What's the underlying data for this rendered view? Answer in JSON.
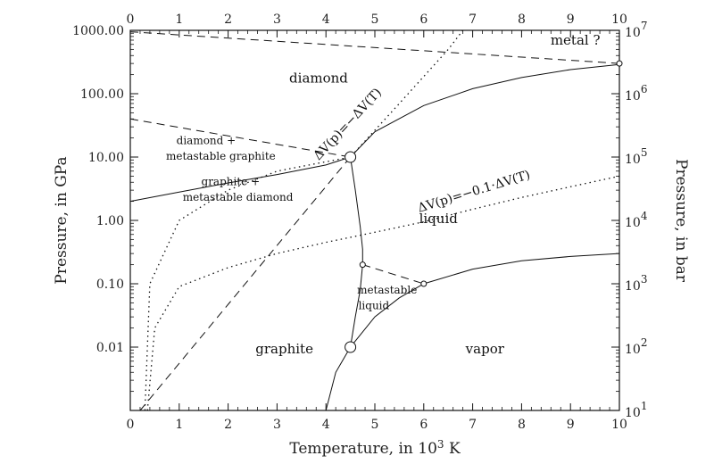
{
  "chart_data": {
    "type": "line",
    "xlabel": "Temperature, in 10^3 K",
    "ylabel_left": "Pressure, in GPa",
    "ylabel_right": "Pressure, in bar",
    "xlim": [
      0,
      10
    ],
    "ylim_gpa": [
      0.001,
      1000
    ],
    "yscale": "log",
    "x_ticks": [
      "0",
      "1",
      "2",
      "3",
      "4",
      "5",
      "6",
      "7",
      "8",
      "9",
      "10"
    ],
    "y_left_ticks": [
      {
        "value": 1000,
        "label": "1000.00"
      },
      {
        "value": 100,
        "label": "100.00"
      },
      {
        "value": 10,
        "label": "10.00"
      },
      {
        "value": 1,
        "label": "1.00"
      },
      {
        "value": 0.1,
        "label": "0.10"
      },
      {
        "value": 0.01,
        "label": "0.01"
      }
    ],
    "y_right_ticks": [
      {
        "exp": "7",
        "gpa": 1000
      },
      {
        "exp": "6",
        "gpa": 100
      },
      {
        "exp": "5",
        "gpa": 10
      },
      {
        "exp": "4",
        "gpa": 1
      },
      {
        "exp": "3",
        "gpa": 0.1
      },
      {
        "exp": "2",
        "gpa": 0.01
      },
      {
        "exp": "1",
        "gpa": 0.001
      }
    ],
    "series": [
      {
        "style": "solid",
        "points": [
          [
            0,
            2
          ],
          [
            1,
            2.8
          ],
          [
            2,
            3.9
          ],
          [
            3,
            5.3
          ],
          [
            4,
            7.5
          ],
          [
            4.5,
            10
          ]
        ]
      },
      {
        "style": "solid",
        "points": [
          [
            4.5,
            10
          ],
          [
            5,
            25
          ],
          [
            6,
            65
          ],
          [
            7,
            120
          ],
          [
            8,
            180
          ],
          [
            9,
            240
          ],
          [
            10,
            290
          ]
        ]
      },
      {
        "style": "solid",
        "points": [
          [
            4.5,
            10
          ],
          [
            4.6,
            3
          ],
          [
            4.7,
            0.8
          ],
          [
            4.75,
            0.35
          ],
          [
            4.75,
            0.2
          ],
          [
            4.7,
            0.08
          ],
          [
            4.6,
            0.03
          ],
          [
            4.5,
            0.01
          ]
        ]
      },
      {
        "style": "solid",
        "points": [
          [
            4,
            0.001
          ],
          [
            4.2,
            0.004
          ],
          [
            4.5,
            0.01
          ],
          [
            5,
            0.03
          ],
          [
            5.5,
            0.06
          ],
          [
            6,
            0.1
          ],
          [
            7,
            0.17
          ],
          [
            8,
            0.23
          ],
          [
            9,
            0.27
          ],
          [
            10,
            0.3
          ]
        ]
      },
      {
        "style": "dashed",
        "points": [
          [
            0,
            950
          ],
          [
            10,
            300
          ]
        ]
      },
      {
        "style": "dashed",
        "points": [
          [
            0,
            40
          ],
          [
            4.5,
            10
          ]
        ]
      },
      {
        "style": "dashed",
        "points": [
          [
            0.2,
            0.001
          ],
          [
            4.5,
            10
          ]
        ]
      },
      {
        "style": "dashed",
        "points": [
          [
            4.75,
            0.2
          ],
          [
            6,
            0.1
          ]
        ]
      },
      {
        "style": "dotted",
        "points": [
          [
            0.3,
            0.001
          ],
          [
            0.4,
            0.1
          ],
          [
            1,
            1
          ],
          [
            2,
            3
          ],
          [
            3,
            6
          ],
          [
            4.5,
            10
          ],
          [
            5.5,
            70
          ],
          [
            6.5,
            500
          ],
          [
            6.8,
            1000
          ]
        ]
      },
      {
        "style": "dotted",
        "points": [
          [
            0.35,
            0.001
          ],
          [
            0.5,
            0.02
          ],
          [
            1,
            0.09
          ],
          [
            2,
            0.18
          ],
          [
            3,
            0.3
          ],
          [
            4,
            0.45
          ],
          [
            5,
            0.65
          ],
          [
            6,
            0.95
          ],
          [
            7,
            1.5
          ],
          [
            8,
            2.3
          ],
          [
            9,
            3.4
          ],
          [
            10,
            5
          ]
        ]
      }
    ],
    "markers": [
      {
        "x": 4.5,
        "y": 10,
        "size": "large"
      },
      {
        "x": 4.5,
        "y": 0.01,
        "size": "large"
      },
      {
        "x": 4.75,
        "y": 0.2,
        "size": "small"
      },
      {
        "x": 6,
        "y": 0.1,
        "size": "small"
      },
      {
        "x": 10,
        "y": 300,
        "size": "small"
      }
    ],
    "regions": [
      {
        "text": "diamond",
        "x": 3.85,
        "y": 150,
        "size": "large"
      },
      {
        "text": "liquid",
        "x": 6.3,
        "y": 0.9,
        "size": "large"
      },
      {
        "text": "graphite",
        "x": 3.15,
        "y": 0.008,
        "size": "large"
      },
      {
        "text": "vapor",
        "x": 7.25,
        "y": 0.008,
        "size": "large"
      },
      {
        "text": "metal ?",
        "x": 9.1,
        "y": 600,
        "size": "large"
      },
      {
        "text": "diamond +",
        "x": 1.55,
        "y": 16,
        "size": "small"
      },
      {
        "text": "metastable graphite",
        "x": 1.85,
        "y": 9,
        "size": "small"
      },
      {
        "text": "graphite +",
        "x": 2.05,
        "y": 3.6,
        "size": "small"
      },
      {
        "text": "metastable diamond",
        "x": 2.2,
        "y": 2.05,
        "size": "small"
      },
      {
        "text": "metastable",
        "x": 5.25,
        "y": 0.07,
        "size": "small"
      },
      {
        "text": "liquid",
        "x": 4.98,
        "y": 0.04,
        "size": "small"
      }
    ],
    "annotations": [
      {
        "text": "ΔV(p)=−ΔV(T)",
        "x": 4.5,
        "y": 30,
        "angle": -47
      },
      {
        "text": "ΔV(p)=−0.1·ΔV(T)",
        "x": 7.05,
        "y": 2.5,
        "angle": -17
      }
    ],
    "grid": false
  }
}
